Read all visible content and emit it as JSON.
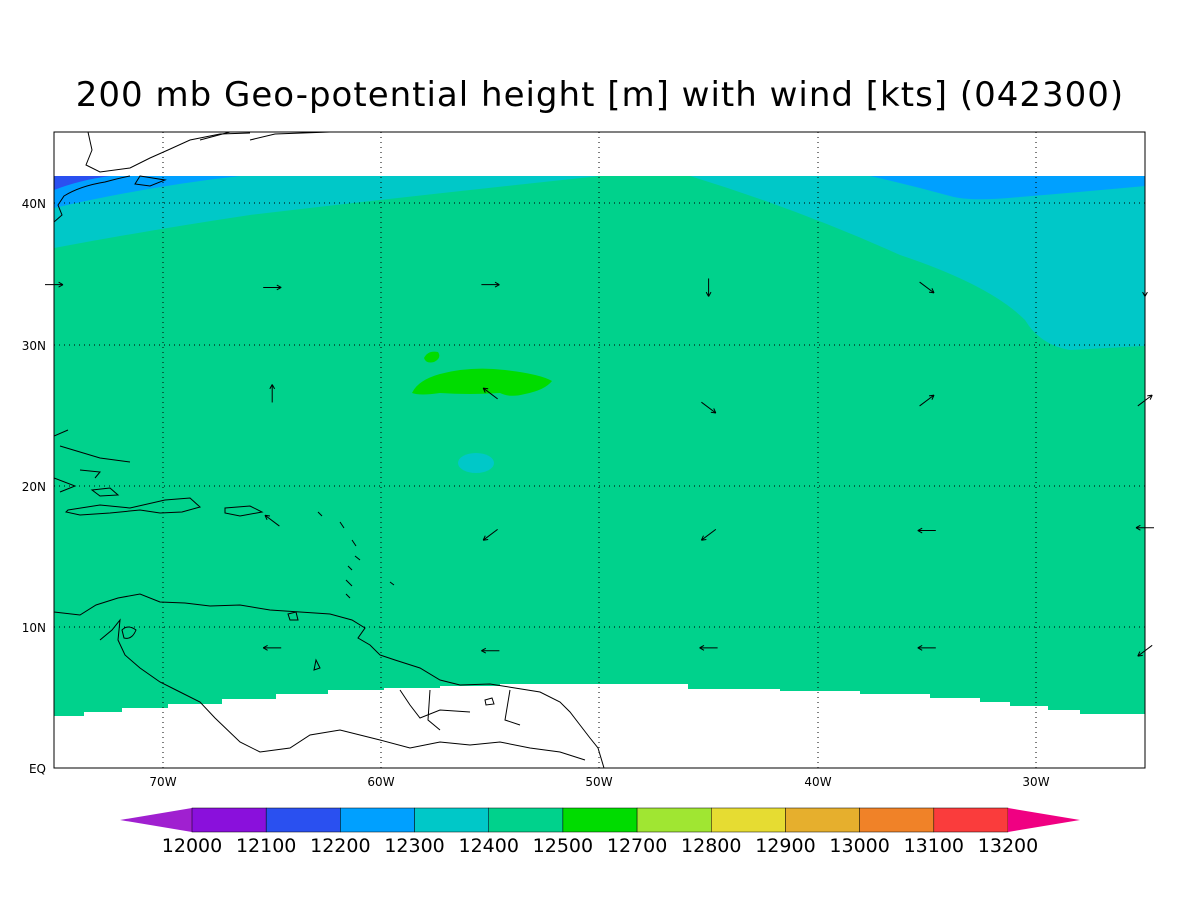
{
  "title": "200 mb Geo-potential height [m] with wind [kts] (042300)",
  "map": {
    "lon_labels": [
      "70W",
      "60W",
      "50W",
      "40W",
      "30W"
    ],
    "lat_labels": [
      "40N",
      "30N",
      "20N",
      "10N",
      "EQ"
    ],
    "lon_range": [
      -75,
      -25
    ],
    "lat_range": [
      0,
      45
    ],
    "gridlines": true
  },
  "colorbar": {
    "labels": [
      "12000",
      "12100",
      "12200",
      "12300",
      "12400",
      "12500",
      "12700",
      "12800",
      "12900",
      "13000",
      "13100",
      "13200"
    ],
    "colors": [
      "#a020d0",
      "#8a10dc",
      "#2a50f0",
      "#00a0ff",
      "#00c8c8",
      "#00d28c",
      "#00dc00",
      "#a0e632",
      "#e6dc32",
      "#e6af2d",
      "#f08228",
      "#fa3c3c",
      "#f00082"
    ]
  },
  "field_colors": {
    "c12200": "#2a50f0",
    "c12300": "#00a0ff",
    "c12400": "#00c8c8",
    "c12500": "#00d28c",
    "c12700": "#00dc00"
  },
  "wind_vectors": [
    {
      "lon": -75,
      "lat": 34.2,
      "dir": "E"
    },
    {
      "lon": -65,
      "lat": 34.0,
      "dir": "E"
    },
    {
      "lon": -55,
      "lat": 34.2,
      "dir": "E"
    },
    {
      "lon": -45,
      "lat": 34.0,
      "dir": "S"
    },
    {
      "lon": -35,
      "lat": 34.0,
      "dir": "SE"
    },
    {
      "lon": -25,
      "lat": 34.0,
      "dir": "S"
    },
    {
      "lon": -65,
      "lat": 26.5,
      "dir": "N"
    },
    {
      "lon": -55,
      "lat": 26.5,
      "dir": "NW"
    },
    {
      "lon": -45,
      "lat": 25.5,
      "dir": "SE"
    },
    {
      "lon": -35,
      "lat": 26.0,
      "dir": "NE"
    },
    {
      "lon": -25,
      "lat": 26.0,
      "dir": "NE"
    },
    {
      "lon": -65,
      "lat": 17.5,
      "dir": "NW"
    },
    {
      "lon": -55,
      "lat": 16.5,
      "dir": "SW"
    },
    {
      "lon": -45,
      "lat": 16.5,
      "dir": "SW"
    },
    {
      "lon": -35,
      "lat": 16.8,
      "dir": "W"
    },
    {
      "lon": -25,
      "lat": 17.0,
      "dir": "W"
    },
    {
      "lon": -65,
      "lat": 8.5,
      "dir": "W"
    },
    {
      "lon": -55,
      "lat": 8.3,
      "dir": "W"
    },
    {
      "lon": -45,
      "lat": 8.5,
      "dir": "W"
    },
    {
      "lon": -35,
      "lat": 8.5,
      "dir": "W"
    },
    {
      "lon": -25,
      "lat": 8.3,
      "dir": "SW"
    }
  ]
}
